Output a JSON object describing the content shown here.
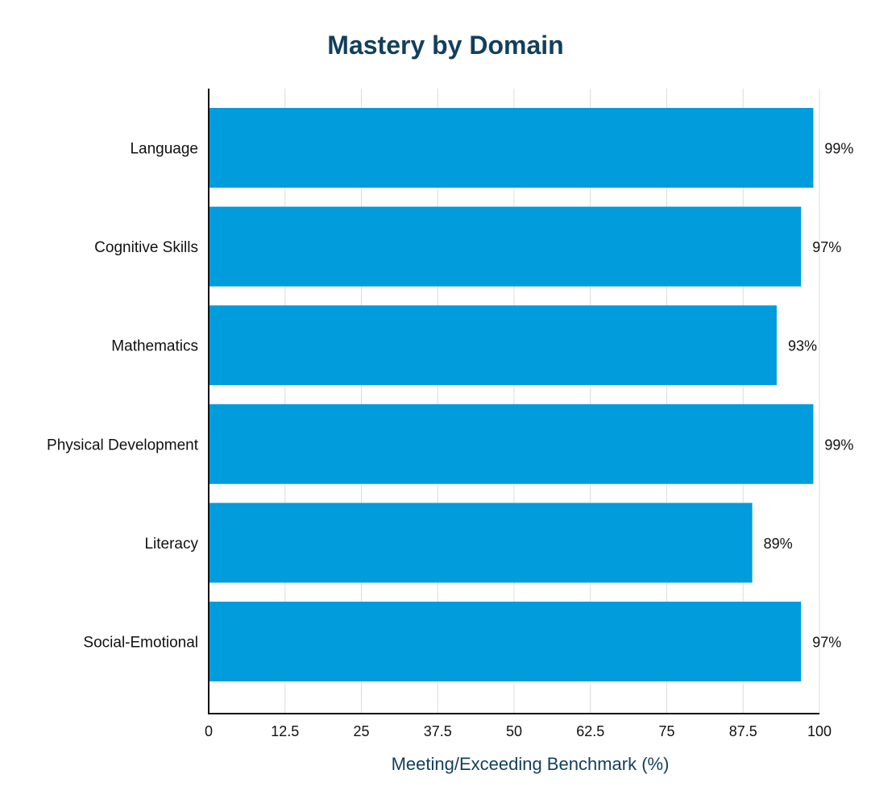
{
  "chart_data": {
    "type": "bar",
    "orientation": "horizontal",
    "title": "Mastery by Domain",
    "xlabel": "Meeting/Exceeding Benchmark (%)",
    "ylabel": "",
    "categories": [
      "Language",
      "Cognitive Skills",
      "Mathematics",
      "Physical Development",
      "Literacy",
      "Social-Emotional"
    ],
    "values": [
      99,
      97,
      93,
      99,
      89,
      97
    ],
    "value_labels": [
      "99%",
      "97%",
      "93%",
      "99%",
      "89%",
      "97%"
    ],
    "xlim": [
      0,
      100
    ],
    "xticks": [
      0,
      12.5,
      25,
      37.5,
      50,
      62.5,
      75,
      87.5,
      100
    ],
    "xtick_labels": [
      "0",
      "12.5",
      "25",
      "37.5",
      "50",
      "62.5",
      "75",
      "87.5",
      "100"
    ],
    "grid": "vertical",
    "legend": "none",
    "colors": {
      "bar": "#009cdc",
      "title": "#123f5c",
      "axis_title": "#123f5c",
      "text": "#111111",
      "grid": "#dcdcdc"
    }
  }
}
